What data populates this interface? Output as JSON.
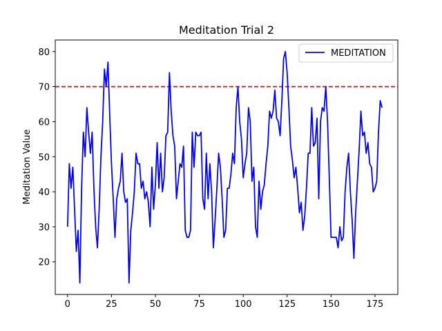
{
  "chart_data": {
    "type": "line",
    "title": "Meditation Trial 2",
    "xlabel": "",
    "ylabel": "Meditation Value",
    "xlim": [
      -7,
      188
    ],
    "ylim": [
      10.7,
      83.3
    ],
    "xticks": [
      0,
      25,
      50,
      75,
      100,
      125,
      150,
      175
    ],
    "yticks": [
      20,
      30,
      40,
      50,
      60,
      70,
      80
    ],
    "grid": false,
    "legend": "top-right",
    "series": [
      {
        "name": "MEDITATION",
        "color": "#0000ff",
        "x": [
          0,
          1,
          2,
          3,
          4,
          5,
          6,
          7,
          8,
          9,
          10,
          11,
          12,
          13,
          14,
          15,
          16,
          17,
          18,
          19,
          20,
          21,
          22,
          23,
          24,
          25,
          26,
          27,
          28,
          29,
          30,
          31,
          32,
          33,
          34,
          35,
          36,
          37,
          38,
          39,
          40,
          41,
          42,
          43,
          44,
          45,
          46,
          47,
          48,
          49,
          50,
          51,
          52,
          53,
          54,
          55,
          56,
          57,
          58,
          59,
          60,
          61,
          62,
          63,
          64,
          65,
          66,
          67,
          68,
          69,
          70,
          71,
          72,
          73,
          74,
          75,
          76,
          77,
          78,
          79,
          80,
          81,
          82,
          83,
          84,
          85,
          86,
          87,
          88,
          89,
          90,
          91,
          92,
          93,
          94,
          95,
          96,
          97,
          98,
          99,
          100,
          101,
          102,
          103,
          104,
          105,
          106,
          107,
          108,
          109,
          110,
          111,
          112,
          113,
          114,
          115,
          116,
          117,
          118,
          119,
          120,
          121,
          122,
          123,
          124,
          125,
          126,
          127,
          128,
          129,
          130,
          131,
          132,
          133,
          134,
          135,
          136,
          137,
          138,
          139,
          140,
          141,
          142,
          143,
          144,
          145,
          146,
          147,
          148,
          149,
          150,
          151,
          152,
          153,
          154,
          155,
          156,
          157,
          158,
          159,
          160,
          161,
          162,
          163,
          164,
          165,
          166,
          167,
          168,
          169,
          170,
          171,
          172,
          173,
          174,
          175,
          176,
          177,
          178,
          179
        ],
        "values": [
          30,
          48,
          41,
          47,
          35,
          23,
          29,
          14,
          41,
          57,
          50,
          64,
          57,
          51,
          57,
          41,
          30,
          24,
          35,
          50,
          60,
          75,
          70,
          77,
          62,
          48,
          38,
          27,
          38,
          41,
          43,
          51,
          40,
          37,
          38,
          14,
          29,
          34,
          40,
          51,
          48,
          48,
          41,
          43,
          38,
          40,
          37,
          30,
          47,
          35,
          42,
          54,
          41,
          51,
          40,
          44,
          56,
          57,
          74,
          63,
          56,
          53,
          38,
          43,
          48,
          47,
          53,
          29,
          27,
          27,
          29,
          57,
          47,
          57,
          56,
          56,
          57,
          38,
          35,
          51,
          38,
          48,
          40,
          24,
          32,
          41,
          51,
          47,
          38,
          27,
          29,
          41,
          41,
          45,
          51,
          48,
          64,
          70,
          60,
          55,
          44,
          48,
          51,
          64,
          60,
          43,
          47,
          30,
          27,
          43,
          35,
          40,
          42,
          48,
          53,
          63,
          61,
          63,
          69,
          61,
          60,
          56,
          66,
          78,
          80,
          74,
          64,
          53,
          49,
          44,
          47,
          41,
          34,
          37,
          29,
          33,
          41,
          51,
          51,
          64,
          53,
          54,
          61,
          38,
          60,
          64,
          63,
          70,
          60,
          44,
          27,
          27,
          27,
          27,
          24,
          30,
          26,
          27,
          40,
          47,
          51,
          40,
          32,
          21,
          34,
          43,
          52,
          63,
          56,
          57,
          51,
          54,
          48,
          47,
          40,
          41,
          43,
          57,
          66,
          64
        ]
      }
    ],
    "reference_lines": [
      {
        "orientation": "horizontal",
        "y": 70,
        "style": "dashed",
        "color": "#ff0000"
      }
    ]
  }
}
